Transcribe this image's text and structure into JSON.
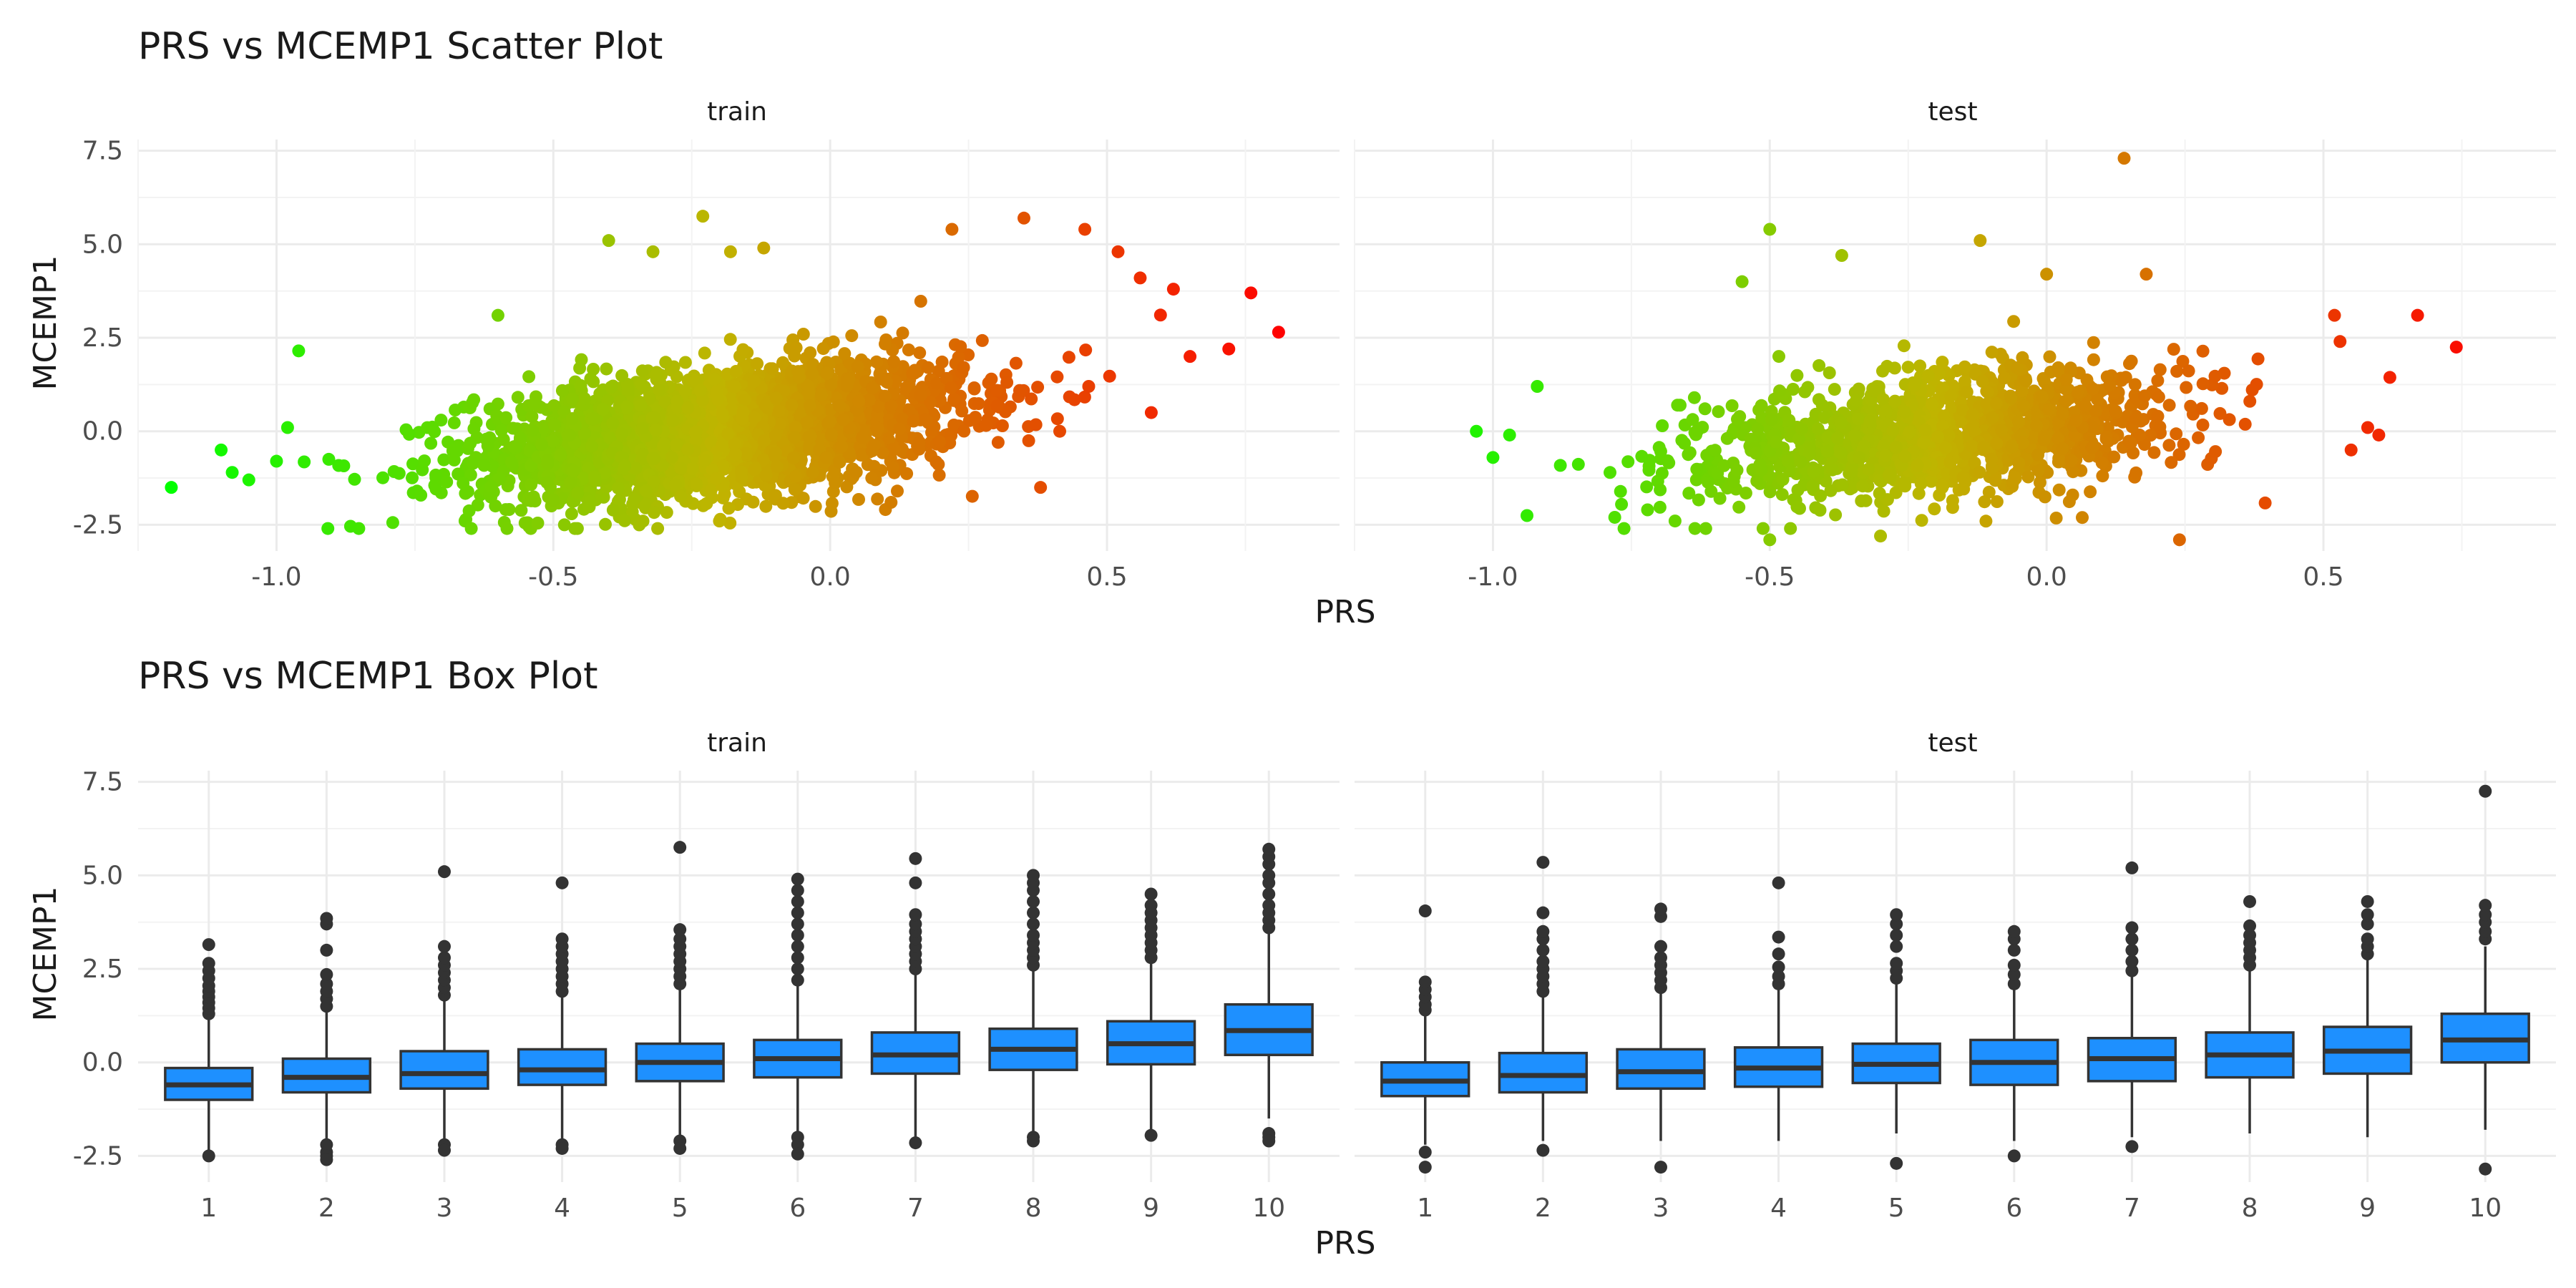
{
  "chart_data": [
    {
      "type": "scatter",
      "title": "PRS vs MCEMP1 Scatter Plot",
      "xlabel": "PRS",
      "ylabel": "MCEMP1",
      "facets": [
        "train",
        "test"
      ],
      "xlim": [
        -1.25,
        0.92
      ],
      "ylim": [
        -3.2,
        7.8
      ],
      "x_ticks": [
        -1.0,
        -0.5,
        0.0,
        0.5
      ],
      "x_tick_labels": [
        "-1.0",
        "-0.5",
        "0.0",
        "0.5"
      ],
      "y_ticks": [
        -2.5,
        0.0,
        2.5,
        5.0,
        7.5
      ],
      "y_tick_labels": [
        "-2.5",
        "0.0",
        "2.5",
        "5.0",
        "7.5"
      ],
      "color_scale": {
        "variable": "PRS",
        "low": "#00ff00",
        "mid": "#c0b400",
        "high": "#ff0000",
        "domain": [
          -1.2,
          -0.2,
          0.82
        ]
      },
      "grid": true,
      "legend": "none",
      "series": [
        {
          "facet": "train",
          "bulk": {
            "n": 2600,
            "x_mean": -0.2,
            "x_sd": 0.22,
            "slope": 1.6,
            "intercept": 0.3,
            "resid_sd": 0.85
          },
          "points": [
            {
              "x": -1.19,
              "y": -1.5
            },
            {
              "x": -0.96,
              "y": 2.15
            },
            {
              "x": -1.1,
              "y": -0.5
            },
            {
              "x": -1.08,
              "y": -1.1
            },
            {
              "x": -1.05,
              "y": -1.3
            },
            {
              "x": -1.0,
              "y": -0.8
            },
            {
              "x": -0.98,
              "y": 0.1
            },
            {
              "x": -0.6,
              "y": 3.1
            },
            {
              "x": -0.4,
              "y": 5.1
            },
            {
              "x": -0.32,
              "y": 4.8
            },
            {
              "x": -0.23,
              "y": 5.75
            },
            {
              "x": -0.18,
              "y": 4.8
            },
            {
              "x": -0.12,
              "y": 4.9
            },
            {
              "x": 0.22,
              "y": 5.4
            },
            {
              "x": 0.35,
              "y": 5.7
            },
            {
              "x": 0.46,
              "y": 5.4
            },
            {
              "x": 0.52,
              "y": 4.8
            },
            {
              "x": 0.56,
              "y": 4.1
            },
            {
              "x": 0.62,
              "y": 3.8
            },
            {
              "x": 0.65,
              "y": 2.0
            },
            {
              "x": 0.72,
              "y": 2.2
            },
            {
              "x": 0.76,
              "y": 3.7
            },
            {
              "x": 0.81,
              "y": 2.65
            },
            {
              "x": -0.48,
              "y": -2.5
            },
            {
              "x": -0.2,
              "y": -2.4
            },
            {
              "x": 0.11,
              "y": -1.9
            },
            {
              "x": 0.38,
              "y": -1.5
            },
            {
              "x": 0.58,
              "y": 0.5
            }
          ]
        },
        {
          "facet": "test",
          "bulk": {
            "n": 1300,
            "x_mean": -0.2,
            "x_sd": 0.22,
            "slope": 1.4,
            "intercept": 0.2,
            "resid_sd": 0.8
          },
          "points": [
            {
              "x": -1.03,
              "y": 0.0
            },
            {
              "x": -1.0,
              "y": -0.7
            },
            {
              "x": -0.97,
              "y": -0.1
            },
            {
              "x": -0.92,
              "y": 1.2
            },
            {
              "x": -0.5,
              "y": 5.4
            },
            {
              "x": -0.55,
              "y": 4.0
            },
            {
              "x": -0.37,
              "y": 4.7
            },
            {
              "x": -0.12,
              "y": 5.1
            },
            {
              "x": 0.0,
              "y": 4.2
            },
            {
              "x": 0.14,
              "y": 7.3
            },
            {
              "x": 0.18,
              "y": 4.2
            },
            {
              "x": 0.52,
              "y": 3.1
            },
            {
              "x": 0.53,
              "y": 2.4
            },
            {
              "x": 0.67,
              "y": 3.1
            },
            {
              "x": 0.74,
              "y": 2.25
            },
            {
              "x": 0.58,
              "y": 0.1
            },
            {
              "x": 0.6,
              "y": -0.1
            },
            {
              "x": 0.55,
              "y": -0.5
            },
            {
              "x": 0.24,
              "y": -2.9
            },
            {
              "x": -0.5,
              "y": -2.9
            },
            {
              "x": -0.3,
              "y": -2.8
            },
            {
              "x": -0.78,
              "y": -2.3
            }
          ]
        }
      ]
    },
    {
      "type": "box",
      "title": "PRS vs MCEMP1 Box Plot",
      "xlabel": "PRS",
      "ylabel": "MCEMP1",
      "facets": [
        "train",
        "test"
      ],
      "categories": [
        "1",
        "2",
        "3",
        "4",
        "5",
        "6",
        "7",
        "8",
        "9",
        "10"
      ],
      "ylim": [
        -3.2,
        7.8
      ],
      "y_ticks": [
        -2.5,
        0.0,
        2.5,
        5.0,
        7.5
      ],
      "y_tick_labels": [
        "-2.5",
        "0.0",
        "2.5",
        "5.0",
        "7.5"
      ],
      "fill": "#1e90ff",
      "grid": true,
      "series": [
        {
          "facet": "train",
          "boxes": [
            {
              "q1": -1.0,
              "median": -0.6,
              "q3": -0.15,
              "lower": -2.4,
              "upper": 1.2,
              "outliers": [
                -2.5,
                1.3,
                1.45,
                1.6,
                1.75,
                1.9,
                2.05,
                2.25,
                2.45,
                2.65,
                3.15
              ]
            },
            {
              "q1": -0.8,
              "median": -0.4,
              "q3": 0.1,
              "lower": -2.1,
              "upper": 1.4,
              "outliers": [
                -2.2,
                -2.4,
                -2.5,
                -2.6,
                1.5,
                1.7,
                1.9,
                2.1,
                2.35,
                3.0,
                3.7,
                3.85
              ]
            },
            {
              "q1": -0.7,
              "median": -0.3,
              "q3": 0.3,
              "lower": -2.1,
              "upper": 1.7,
              "outliers": [
                -2.2,
                -2.35,
                1.8,
                2.0,
                2.2,
                2.4,
                2.6,
                2.8,
                3.1,
                5.1
              ]
            },
            {
              "q1": -0.6,
              "median": -0.2,
              "q3": 0.35,
              "lower": -2.1,
              "upper": 1.8,
              "outliers": [
                -2.2,
                -2.3,
                1.9,
                2.1,
                2.3,
                2.5,
                2.7,
                2.9,
                3.1,
                3.3,
                4.8
              ]
            },
            {
              "q1": -0.5,
              "median": 0.0,
              "q3": 0.5,
              "lower": -2.0,
              "upper": 2.0,
              "outliers": [
                -2.1,
                -2.3,
                2.1,
                2.3,
                2.5,
                2.7,
                2.9,
                3.1,
                3.3,
                3.55,
                5.75
              ]
            },
            {
              "q1": -0.4,
              "median": 0.1,
              "q3": 0.6,
              "lower": -1.9,
              "upper": 2.1,
              "outliers": [
                -2.0,
                -2.2,
                -2.45,
                2.2,
                2.5,
                2.8,
                3.1,
                3.4,
                3.7,
                4.0,
                4.3,
                4.6,
                4.9
              ]
            },
            {
              "q1": -0.3,
              "median": 0.2,
              "q3": 0.8,
              "lower": -2.0,
              "upper": 2.4,
              "outliers": [
                -2.15,
                2.5,
                2.7,
                2.9,
                3.1,
                3.3,
                3.5,
                3.7,
                3.95,
                4.8,
                5.45
              ]
            },
            {
              "q1": -0.2,
              "median": 0.35,
              "q3": 0.9,
              "lower": -1.9,
              "upper": 2.5,
              "outliers": [
                -2.0,
                -2.1,
                2.6,
                2.8,
                3.0,
                3.2,
                3.4,
                3.7,
                4.0,
                4.3,
                4.6,
                4.8,
                5.0
              ]
            },
            {
              "q1": -0.05,
              "median": 0.5,
              "q3": 1.1,
              "lower": -1.9,
              "upper": 2.7,
              "outliers": [
                -1.95,
                2.8,
                3.0,
                3.2,
                3.4,
                3.6,
                3.8,
                4.0,
                4.2,
                4.5
              ]
            },
            {
              "q1": 0.2,
              "median": 0.85,
              "q3": 1.55,
              "lower": -1.5,
              "upper": 3.5,
              "outliers": [
                -1.9,
                -2.0,
                -2.1,
                3.6,
                3.8,
                4.0,
                4.2,
                4.5,
                4.8,
                5.0,
                5.3,
                5.5,
                5.7
              ]
            }
          ]
        },
        {
          "facet": "test",
          "boxes": [
            {
              "q1": -0.9,
              "median": -0.5,
              "q3": 0.0,
              "lower": -2.2,
              "upper": 1.3,
              "outliers": [
                -2.4,
                -2.8,
                1.4,
                1.55,
                1.75,
                1.95,
                2.15,
                4.05
              ]
            },
            {
              "q1": -0.8,
              "median": -0.35,
              "q3": 0.25,
              "lower": -2.1,
              "upper": 1.8,
              "outliers": [
                -2.35,
                1.9,
                2.1,
                2.3,
                2.5,
                2.7,
                3.0,
                3.3,
                3.5,
                4.0,
                5.35
              ]
            },
            {
              "q1": -0.7,
              "median": -0.25,
              "q3": 0.35,
              "lower": -2.1,
              "upper": 1.9,
              "outliers": [
                -2.8,
                2.0,
                2.2,
                2.4,
                2.6,
                2.8,
                3.1,
                3.9,
                4.1
              ]
            },
            {
              "q1": -0.65,
              "median": -0.15,
              "q3": 0.4,
              "lower": -2.1,
              "upper": 2.0,
              "outliers": [
                2.1,
                2.3,
                2.55,
                2.9,
                3.35,
                4.8
              ]
            },
            {
              "q1": -0.55,
              "median": -0.05,
              "q3": 0.5,
              "lower": -1.9,
              "upper": 2.1,
              "outliers": [
                -2.7,
                2.25,
                2.45,
                2.65,
                3.1,
                3.4,
                3.7,
                3.95
              ]
            },
            {
              "q1": -0.6,
              "median": 0.0,
              "q3": 0.6,
              "lower": -2.1,
              "upper": 2.0,
              "outliers": [
                -2.5,
                2.1,
                2.35,
                2.6,
                3.0,
                3.3,
                3.5
              ]
            },
            {
              "q1": -0.5,
              "median": 0.1,
              "q3": 0.65,
              "lower": -2.0,
              "upper": 2.3,
              "outliers": [
                -2.25,
                2.45,
                2.7,
                3.0,
                3.3,
                3.6,
                5.2
              ]
            },
            {
              "q1": -0.4,
              "median": 0.2,
              "q3": 0.8,
              "lower": -1.9,
              "upper": 2.5,
              "outliers": [
                2.6,
                2.8,
                3.0,
                3.2,
                3.4,
                3.65,
                4.3
              ]
            },
            {
              "q1": -0.3,
              "median": 0.3,
              "q3": 0.95,
              "lower": -2.0,
              "upper": 2.8,
              "outliers": [
                2.9,
                3.1,
                3.3,
                3.7,
                3.95,
                4.3
              ]
            },
            {
              "q1": 0.0,
              "median": 0.6,
              "q3": 1.3,
              "lower": -1.8,
              "upper": 3.1,
              "outliers": [
                -2.85,
                3.3,
                3.5,
                3.75,
                3.95,
                4.2,
                7.25
              ]
            }
          ]
        }
      ]
    }
  ]
}
